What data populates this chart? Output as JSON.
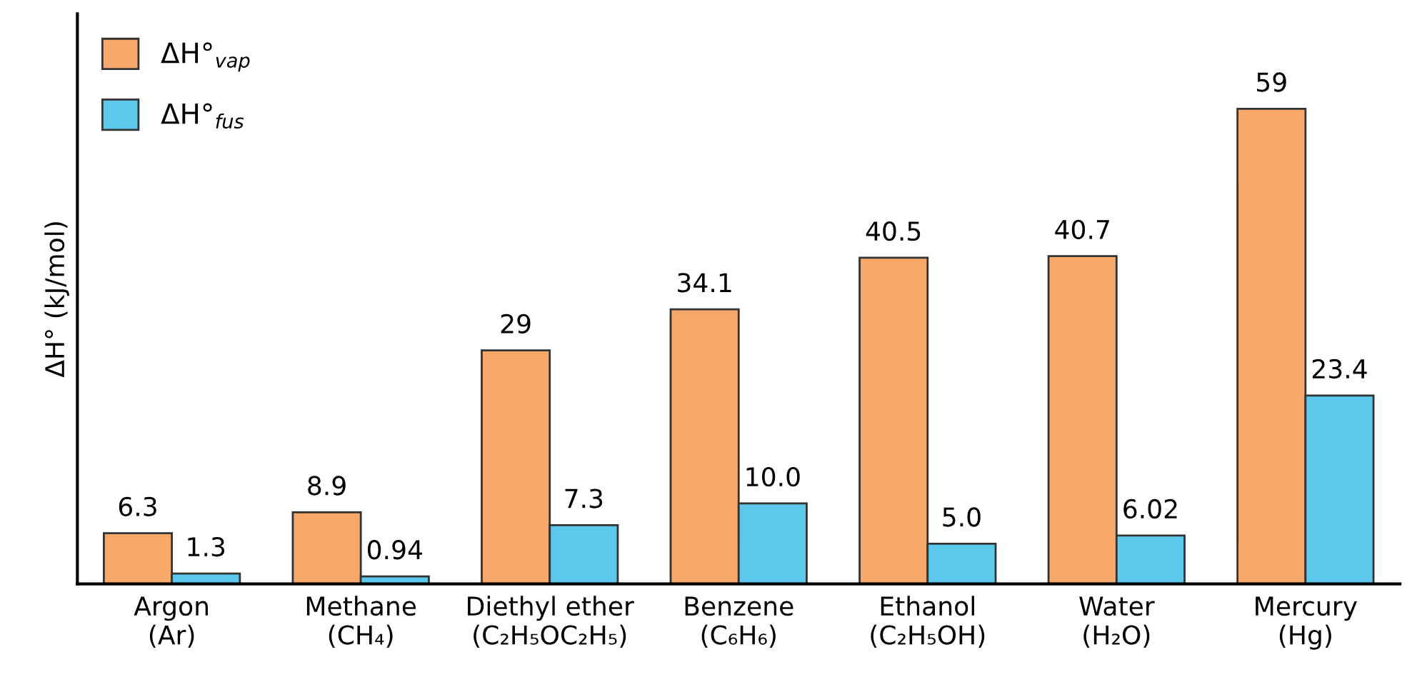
{
  "chart_data": {
    "type": "bar",
    "ylabel": "ΔH° (kJ/mol)",
    "categories": [
      "Argon\n(Ar)",
      "Methane\n(CH₄)",
      "Diethyl ether\n(C₂H₅OC₂H₅)",
      "Benzene\n(C₆H₆)",
      "Ethanol\n(C₂H₅OH)",
      "Water\n(H₂O)",
      "Mercury\n(Hg)"
    ],
    "series": [
      {
        "name": "ΔH°$_{vap}$",
        "color": "#f9a86b",
        "values": [
          6.3,
          8.9,
          29,
          34.1,
          40.5,
          40.7,
          59
        ],
        "value_labels": [
          "6.3",
          "8.9",
          "29",
          "34.1",
          "40.5",
          "40.7",
          "59"
        ]
      },
      {
        "name": "ΔH°$_{fus}$",
        "color": "#5bc8ec",
        "values": [
          1.3,
          0.94,
          7.3,
          10.0,
          5.0,
          6.02,
          23.4
        ],
        "value_labels": [
          "1.3",
          "0.94",
          "7.3",
          "10.0",
          "5.0",
          "6.02",
          "23.4"
        ]
      }
    ],
    "legend": "top left",
    "tick_labels": "x",
    "grid": false
  }
}
